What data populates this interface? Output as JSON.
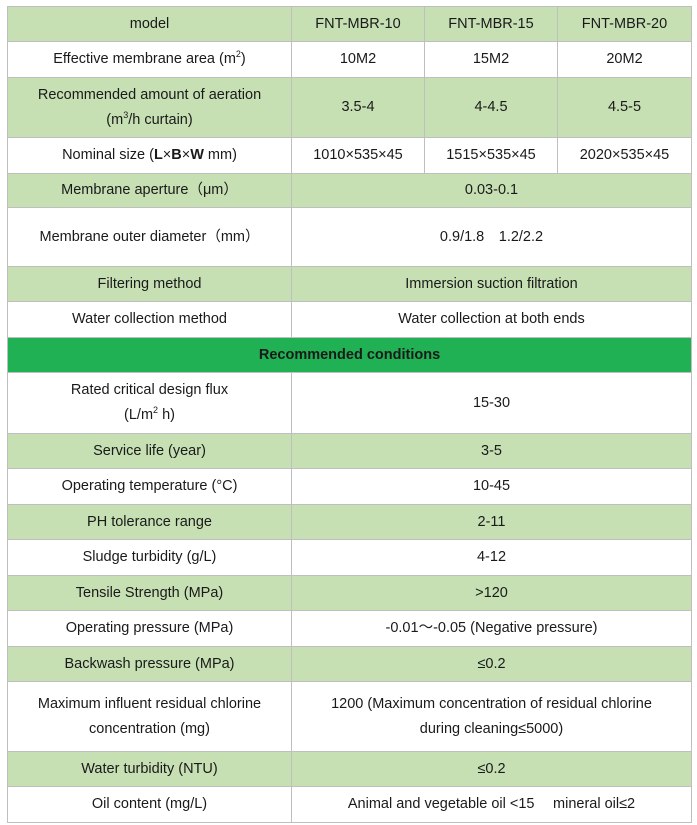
{
  "header": {
    "label": "model",
    "models": [
      "FNT-MBR-10",
      "FNT-MBR-15",
      "FNT-MBR-20"
    ]
  },
  "area": {
    "label_pre": "Effective membrane area (m",
    "label_sup": "2",
    "label_post": ")",
    "values": [
      "10M2",
      "15M2",
      "20M2"
    ]
  },
  "aeration": {
    "label_line1": "Recommended amount of aeration",
    "label_pre": "(m",
    "label_sup": "3",
    "label_post": "/h curtain)",
    "values": [
      "3.5-4",
      "4-4.5",
      "4.5-5"
    ]
  },
  "nominal": {
    "label_pre": "Nominal size (",
    "label_l": "L",
    "label_x1": "×",
    "label_b": "B",
    "label_x2": "×",
    "label_w": "W",
    "label_post": " mm)",
    "values": [
      "1010×535×45",
      "1515×535×45",
      "2020×535×45"
    ]
  },
  "aperture": {
    "label": "Membrane aperture（μm）",
    "value": "0.03-0.1"
  },
  "outer_diameter": {
    "label": "Membrane outer diameter（mm）",
    "value": "0.9/1.8　1.2/2.2"
  },
  "filtering": {
    "label": "Filtering method",
    "value": "Immersion suction filtration"
  },
  "collection": {
    "label": "Water collection method",
    "value": "Water collection at both ends"
  },
  "section_title": "Recommended conditions",
  "flux": {
    "label_line1": "Rated critical design flux",
    "label_pre": "(L/m",
    "label_sup": "2",
    "label_post": " h)",
    "value": "15-30"
  },
  "service_life": {
    "label": "Service life (year)",
    "value": "3-5"
  },
  "temperature": {
    "label": "Operating temperature (°C)",
    "value": "10-45"
  },
  "ph": {
    "label": "PH tolerance range",
    "value": "2-11"
  },
  "sludge": {
    "label": "Sludge turbidity (g/L)",
    "value": "4-12"
  },
  "tensile": {
    "label": "Tensile Strength (MPa)",
    "value": ">120"
  },
  "op_pressure": {
    "label": "Operating pressure (MPa)",
    "value": "-0.01～-0.05 (Negative pressure)"
  },
  "backwash": {
    "label": "Backwash pressure (MPa)",
    "value": "≤0.2"
  },
  "chlorine": {
    "label_line1": "Maximum influent residual chlorine",
    "label_line2": "concentration (mg)",
    "value_line1": "1200 (Maximum concentration of residual chlorine",
    "value_line2": "during cleaning≤5000)"
  },
  "turbidity": {
    "label": "Water turbidity (NTU)",
    "value": "≤0.2"
  },
  "oil": {
    "label": "Oil content (mg/L)",
    "value": "Animal and vegetable oil <15　 mineral oil≤2"
  }
}
